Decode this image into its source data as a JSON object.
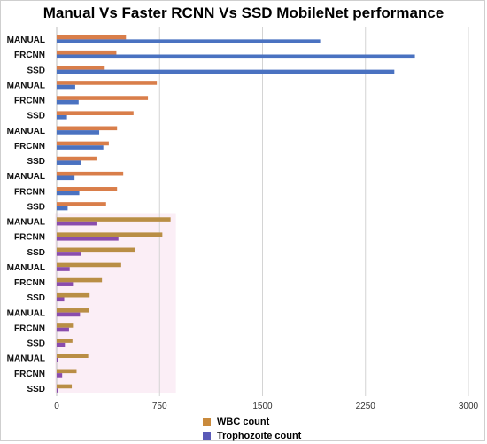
{
  "chart_data": {
    "type": "bar",
    "orientation": "horizontal",
    "title": "Manual Vs Faster RCNN Vs SSD MobileNet performance",
    "xlabel": "",
    "ylabel": "",
    "xlim": [
      0,
      3000
    ],
    "xticks": [
      "0",
      "750",
      "1500",
      "2250",
      "3000"
    ],
    "grid": "vertical",
    "legend_position": "bottom",
    "categories": [
      "MANUAL",
      "FRCNN",
      "SSD",
      "MANUAL",
      "FRCNN",
      "SSD",
      "MANUAL",
      "FRCNN",
      "SSD",
      "MANUAL",
      "FRCNN",
      "SSD",
      "MANUAL",
      "FRCNN",
      "SSD",
      "MANUAL",
      "FRCNN",
      "SSD",
      "MANUAL",
      "FRCNN",
      "SSD",
      "MANUAL",
      "FRCNN",
      "SSD"
    ],
    "series": [
      {
        "name": "WBC count",
        "color": "#d97e4a",
        "values": [
          505,
          435,
          350,
          730,
          665,
          560,
          440,
          380,
          290,
          485,
          440,
          360,
          830,
          770,
          570,
          470,
          330,
          240,
          235,
          125,
          115,
          230,
          145,
          110
        ]
      },
      {
        "name": "Trophozoite count",
        "color": "#4a72c1",
        "values": [
          1920,
          2610,
          2460,
          135,
          160,
          75,
          310,
          340,
          175,
          130,
          165,
          80,
          290,
          450,
          175,
          95,
          125,
          55,
          170,
          90,
          60,
          10,
          40,
          10
        ]
      }
    ],
    "band_colors": {
      "wbc_lower": "#b98e45",
      "troph_lower": "#8a4cad"
    }
  }
}
